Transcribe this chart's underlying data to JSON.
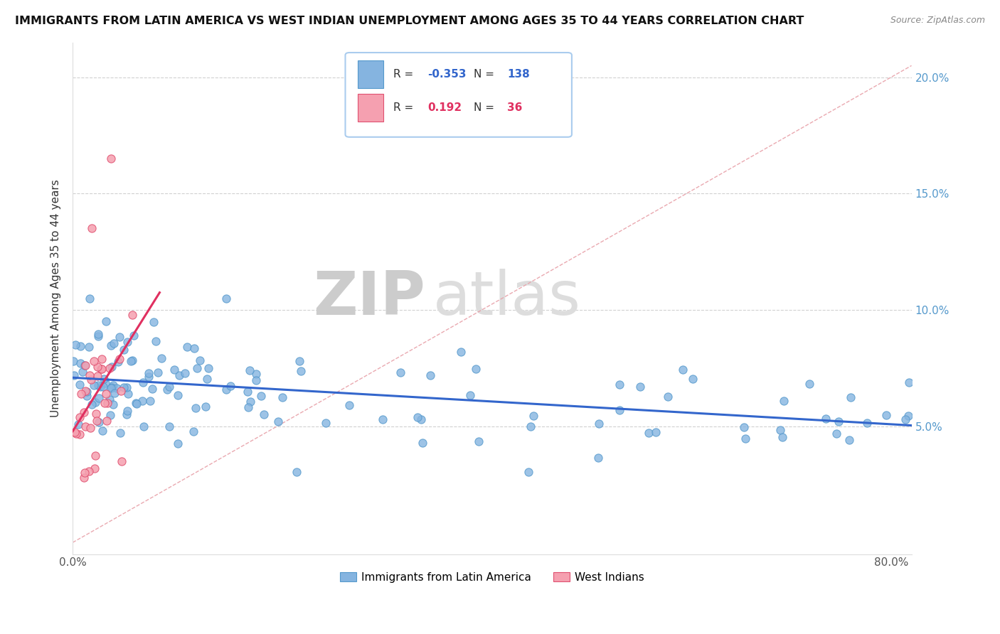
{
  "title": "IMMIGRANTS FROM LATIN AMERICA VS WEST INDIAN UNEMPLOYMENT AMONG AGES 35 TO 44 YEARS CORRELATION CHART",
  "source_text": "Source: ZipAtlas.com",
  "ylabel": "Unemployment Among Ages 35 to 44 years",
  "xlim": [
    0.0,
    0.82
  ],
  "ylim": [
    -0.005,
    0.215
  ],
  "xticks": [
    0.0,
    0.1,
    0.2,
    0.3,
    0.4,
    0.5,
    0.6,
    0.7,
    0.8
  ],
  "xticklabels": [
    "0.0%",
    "",
    "",
    "",
    "",
    "",
    "",
    "",
    "80.0%"
  ],
  "yticks": [
    0.05,
    0.1,
    0.15,
    0.2
  ],
  "yticklabels": [
    "5.0%",
    "10.0%",
    "15.0%",
    "20.0%"
  ],
  "blue_color": "#85B4E0",
  "blue_edge": "#5599CC",
  "pink_color": "#F5A0B0",
  "pink_edge": "#E05070",
  "blue_line_color": "#3366CC",
  "pink_line_color": "#E03060",
  "ref_line_color": "#E8A0A8",
  "watermark_color": "#DEDEDE",
  "watermark": "ZIPatlas",
  "legend_label_blue": "Immigrants from Latin America",
  "legend_label_pink": "West Indians",
  "title_fontsize": 11.5,
  "tick_fontsize": 11,
  "ylabel_fontsize": 11,
  "blue_R_str": "-0.353",
  "pink_R_str": "0.192",
  "blue_N": 138,
  "pink_N": 36
}
